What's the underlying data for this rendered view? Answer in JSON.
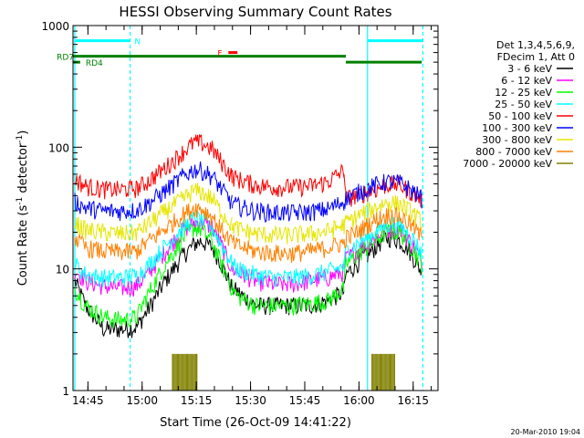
{
  "chart_data": {
    "type": "line",
    "title": "HESSI Observing Summary Count Rates",
    "xlabel": "Start Time (26-Oct-09 14:41:22)",
    "ylabel": "Count Rate (s⁻¹ detector⁻¹)",
    "ylabel_parts": {
      "base": "Count Rate (s",
      "sup1": "-1",
      "mid": " detector",
      "sup2": "-1",
      "end": ")"
    },
    "timestamp": "20-Mar-2010 19:04",
    "xlim_minutes": [
      -0.5,
      100.5
    ],
    "x_ticks": [
      {
        "minute": 3.63,
        "label": "14:45"
      },
      {
        "minute": 18.63,
        "label": "15:00"
      },
      {
        "minute": 33.63,
        "label": "15:15"
      },
      {
        "minute": 48.63,
        "label": "15:30"
      },
      {
        "minute": 63.63,
        "label": "15:45"
      },
      {
        "minute": 78.63,
        "label": "16:00"
      },
      {
        "minute": 93.63,
        "label": "16:15"
      }
    ],
    "x_minor_step": 5,
    "y_scale": "log",
    "ylim": [
      1,
      1000
    ],
    "y_ticks": [
      {
        "value": 1,
        "label": "1"
      },
      {
        "value": 10,
        "label": "10"
      },
      {
        "value": 100,
        "label": "100"
      },
      {
        "value": 1000,
        "label": "1000"
      }
    ],
    "legend": {
      "header": [
        "Det 1,3,4,5,6,9,",
        "FDecim 1, Att 0"
      ],
      "placement": "right"
    },
    "vertical_lines": [
      {
        "minute": 0,
        "style": "solid",
        "color": "#00ffff"
      },
      {
        "minute": 15.3,
        "style": "dashed",
        "color": "#00ffff"
      },
      {
        "minute": 81,
        "style": "solid",
        "color": "#00ffff"
      },
      {
        "minute": 96.3,
        "style": "dashed",
        "color": "#00ffff"
      }
    ],
    "flags": [
      {
        "label": "N",
        "color": "#00ffff",
        "segments": [
          [
            0,
            15.3
          ],
          [
            81,
            96.3
          ]
        ],
        "level": 750,
        "label_at": 16.5
      },
      {
        "label": "RD7",
        "color": "#008000",
        "segments": [
          [
            -0.5,
            75
          ]
        ],
        "level": 560,
        "label_at": -5
      },
      {
        "label": "RD4",
        "color": "#008000",
        "segments": [
          [
            -0.5,
            1.5
          ],
          [
            75,
            96
          ]
        ],
        "level": 500,
        "label_at": 3
      },
      {
        "label": "F",
        "color": "#ff0000",
        "segments": [
          [
            42.5,
            45
          ]
        ],
        "level": 600,
        "label_at": 39.5
      }
    ],
    "x_breaks": [
      0,
      43.5,
      74.5,
      81,
      96
    ],
    "series": [
      {
        "name": "3 - 6 keV",
        "color": "#000000",
        "x": [
          0,
          3,
          8,
          13,
          17,
          20,
          25,
          30,
          33,
          35,
          38,
          40,
          43.5,
          45,
          50,
          55,
          60,
          65,
          70,
          74.5,
          75,
          78,
          80,
          81,
          84,
          86,
          88,
          90,
          92,
          94,
          96
        ],
        "y": [
          8,
          5,
          3.2,
          3.2,
          3.3,
          4.5,
          8,
          13,
          16,
          17,
          15,
          12,
          7,
          6.5,
          5,
          5,
          5,
          5,
          5.5,
          6.5,
          9,
          11,
          12.5,
          13,
          16,
          18,
          18,
          17,
          15,
          12,
          9.5
        ]
      },
      {
        "name": "6 - 12 keV",
        "color": "#ff00ff",
        "x": [
          0,
          3,
          8,
          13,
          17,
          20,
          25,
          30,
          33,
          35,
          38,
          40,
          43.5,
          45,
          50,
          55,
          60,
          65,
          70,
          74.5,
          75,
          78,
          80,
          81,
          84,
          86,
          88,
          90,
          92,
          94,
          96
        ],
        "y": [
          10,
          8,
          7.2,
          7,
          7.2,
          9,
          14,
          21,
          24,
          24,
          22,
          17,
          10,
          9.5,
          8,
          7.5,
          7.5,
          8,
          8.5,
          9.5,
          12,
          14,
          15.5,
          16,
          19,
          21,
          21.5,
          21,
          18,
          15,
          12
        ]
      },
      {
        "name": "12 - 25 keV",
        "color": "#00ff00",
        "x": [
          0,
          3,
          8,
          13,
          17,
          20,
          25,
          30,
          33,
          35,
          38,
          40,
          43.5,
          45,
          50,
          55,
          60,
          65,
          70,
          74.5,
          75,
          78,
          80,
          81,
          84,
          86,
          88,
          90,
          92,
          94,
          96
        ],
        "y": [
          7,
          5,
          4,
          3.8,
          4,
          6,
          11,
          18,
          22,
          21,
          17,
          12,
          7,
          6,
          5,
          5,
          5,
          5.2,
          5.5,
          7,
          11,
          13,
          14.5,
          15,
          18,
          20,
          20.5,
          20,
          17,
          14,
          11
        ]
      },
      {
        "name": "25 - 50 keV",
        "color": "#00ffff",
        "x": [
          0,
          3,
          8,
          13,
          17,
          20,
          25,
          30,
          33,
          35,
          38,
          40,
          43.5,
          45,
          50,
          55,
          60,
          65,
          70,
          74.5,
          75,
          78,
          80,
          81,
          84,
          86,
          88,
          90,
          92,
          94,
          96
        ],
        "y": [
          11,
          9,
          8.5,
          8.5,
          8.8,
          10.5,
          15.5,
          22,
          26,
          25.5,
          22,
          17,
          11,
          10,
          9,
          8.5,
          8.5,
          8.8,
          9.5,
          10.5,
          14,
          16,
          17.5,
          18,
          21,
          23,
          23.5,
          23,
          20,
          17,
          13.5
        ]
      },
      {
        "name": "50 - 100 keV",
        "color": "#ff0000",
        "x": [
          0,
          3,
          8,
          13,
          17,
          20,
          25,
          30,
          33,
          35,
          38,
          40,
          43.5,
          45,
          50,
          55,
          60,
          65,
          70,
          74.5,
          75,
          78,
          80,
          81,
          84,
          86,
          88,
          90,
          92,
          94,
          96
        ],
        "y": [
          55,
          48,
          45,
          45,
          46,
          52,
          68,
          92,
          110,
          109,
          97,
          80,
          58,
          55,
          49,
          47,
          47,
          48,
          52,
          65,
          38,
          40,
          42,
          43,
          46,
          49,
          50,
          49,
          45,
          41,
          37
        ]
      },
      {
        "name": "100 - 300 keV",
        "color": "#0000ff",
        "x": [
          0,
          3,
          8,
          13,
          17,
          20,
          25,
          30,
          33,
          35,
          38,
          40,
          43.5,
          45,
          50,
          55,
          60,
          65,
          70,
          74.5,
          75,
          78,
          80,
          81,
          84,
          86,
          88,
          90,
          92,
          94,
          96
        ],
        "y": [
          36,
          32,
          30,
          30,
          30.5,
          34,
          44,
          58,
          66,
          65,
          58,
          48,
          35,
          33,
          30,
          29,
          29,
          29.5,
          31,
          36,
          38,
          42,
          45,
          46,
          50,
          52,
          52,
          51,
          47,
          43,
          38
        ]
      },
      {
        "name": "300 - 800 keV",
        "color": "#e6e600",
        "x": [
          0,
          3,
          8,
          13,
          17,
          20,
          25,
          30,
          33,
          35,
          38,
          40,
          43.5,
          45,
          50,
          55,
          60,
          65,
          70,
          74.5,
          75,
          78,
          80,
          81,
          84,
          86,
          88,
          90,
          92,
          94,
          96
        ],
        "y": [
          24,
          21,
          20,
          19.5,
          20,
          23,
          30,
          38,
          44,
          43,
          38,
          31,
          23,
          21.5,
          19.5,
          19,
          19,
          19.5,
          20.5,
          23,
          24,
          27,
          29,
          30,
          33,
          35,
          35,
          34,
          31,
          28,
          24
        ]
      },
      {
        "name": "800 - 7000 keV",
        "color": "#ff8000",
        "x": [
          0,
          3,
          8,
          13,
          17,
          20,
          25,
          30,
          33,
          35,
          38,
          40,
          43.5,
          45,
          50,
          55,
          60,
          65,
          70,
          74.5,
          75,
          78,
          80,
          81,
          84,
          86,
          88,
          90,
          92,
          94,
          96
        ],
        "y": [
          18,
          15,
          14,
          13.8,
          14,
          16.5,
          21.5,
          28,
          32,
          31.5,
          27,
          22,
          16.5,
          15.5,
          14,
          13.5,
          13.5,
          14,
          15,
          16.5,
          18,
          20,
          22,
          23,
          26,
          27.5,
          28,
          27,
          24.5,
          21.5,
          18
        ]
      },
      {
        "name": "7000 - 20000 keV",
        "color": "#808000",
        "x": [
          0,
          26.8,
          27,
          33.8,
          34,
          82,
          82.2,
          88.5,
          88.7,
          96
        ],
        "y": [
          1,
          1,
          2,
          2,
          1,
          1,
          2,
          2,
          1,
          1
        ]
      }
    ]
  }
}
